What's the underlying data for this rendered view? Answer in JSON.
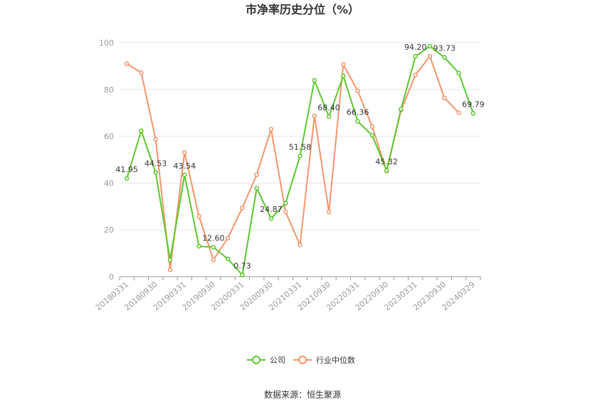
{
  "chart_data": {
    "type": "line",
    "title": "市净率历史分位（%）",
    "ylim": [
      0,
      100
    ],
    "yticks": [
      0,
      20,
      40,
      60,
      80,
      100
    ],
    "x": [
      "20180331",
      "20180630",
      "20180930",
      "20181231",
      "20190331",
      "20190630",
      "20190930",
      "20191231",
      "20200331",
      "20200630",
      "20200930",
      "20201231",
      "20210331",
      "20210630",
      "20210930",
      "20211231",
      "20220331",
      "20220630",
      "20220930",
      "20221231",
      "20230331",
      "20230630",
      "20230930",
      "20231231",
      "20240329"
    ],
    "xtick_labels": [
      "20180331",
      "20180930",
      "20190331",
      "20190930",
      "20200331",
      "20200930",
      "20210331",
      "20210930",
      "20220331",
      "20220930",
      "20230331",
      "20230930",
      "20240329"
    ],
    "series": [
      {
        "name": "公司",
        "color": "#5cc72e",
        "values": [
          41.95,
          62.3,
          44.53,
          7.2,
          43.54,
          13.0,
          12.6,
          7.6,
          0.73,
          37.8,
          24.87,
          31.4,
          51.58,
          83.9,
          68.4,
          85.8,
          66.36,
          60.4,
          45.32,
          71.6,
          94.2,
          98.5,
          93.73,
          87.0,
          69.79
        ]
      },
      {
        "name": "行业中位数",
        "color": "#f4956a",
        "values": [
          91.0,
          87.2,
          58.7,
          3.0,
          53.1,
          25.8,
          7.2,
          16.5,
          29.4,
          43.6,
          63.0,
          27.7,
          13.6,
          68.7,
          27.7,
          90.7,
          79.4,
          64.2,
          45.1,
          71.2,
          86.2,
          94.2,
          76.4,
          70.1,
          null
        ]
      }
    ],
    "data_labels": [
      {
        "series": 0,
        "index": 0,
        "text": "41.95"
      },
      {
        "series": 0,
        "index": 2,
        "text": "44.53"
      },
      {
        "series": 0,
        "index": 4,
        "text": "43.54"
      },
      {
        "series": 0,
        "index": 6,
        "text": "12.60"
      },
      {
        "series": 0,
        "index": 8,
        "text": "0.73"
      },
      {
        "series": 0,
        "index": 10,
        "text": "24.87"
      },
      {
        "series": 0,
        "index": 12,
        "text": "51.58"
      },
      {
        "series": 0,
        "index": 14,
        "text": "68.40"
      },
      {
        "series": 0,
        "index": 16,
        "text": "66.36"
      },
      {
        "series": 0,
        "index": 18,
        "text": "45.32"
      },
      {
        "series": 0,
        "index": 20,
        "text": "94.20"
      },
      {
        "series": 0,
        "index": 22,
        "text": "93.73"
      },
      {
        "series": 0,
        "index": 24,
        "text": "69.79"
      }
    ],
    "legend": {
      "position": "bottom",
      "items": [
        "公司",
        "行业中位数"
      ]
    },
    "grid": true
  },
  "source_text": "数据来源：恒生聚源"
}
